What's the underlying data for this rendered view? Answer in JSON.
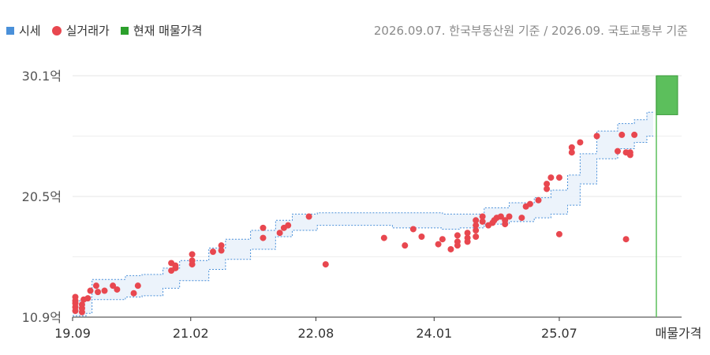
{
  "legend": {
    "items": [
      {
        "label": "시세",
        "color": "#4a90d9",
        "shape": "square"
      },
      {
        "label": "실거래가",
        "color": "#e8474f",
        "shape": "circle"
      },
      {
        "label": "현재 매물가격",
        "color": "#2ca02c",
        "shape": "square"
      }
    ]
  },
  "source_note": "2026.09.07. 한국부동산원 기준 / 2026.09. 국토교통부 기준",
  "chart_data": {
    "type": "scatter",
    "y_unit": "억",
    "y_ticks": [
      "30.1억",
      "20.5억",
      "10.9억"
    ],
    "y_tick_values": [
      30.1,
      20.5,
      10.9
    ],
    "ylim": [
      10.9,
      30.1
    ],
    "x_ticks": [
      "19.09",
      "21.02",
      "22.08",
      "24.01",
      "25.07",
      "매물가격"
    ],
    "x_tick_dates": [
      2019.667,
      2021.083,
      2022.583,
      2024.0,
      2025.5
    ],
    "xlim": [
      2019.667,
      2026.75
    ],
    "grid": true,
    "series": [
      {
        "name": "시세",
        "kind": "band",
        "color": "#4a90d9",
        "points": [
          {
            "x": 2019.667,
            "low": 11.0,
            "high": 12.2
          },
          {
            "x": 2019.83,
            "low": 11.2,
            "high": 12.5
          },
          {
            "x": 2019.9,
            "low": 12.3,
            "high": 13.9
          },
          {
            "x": 2020.3,
            "low": 12.5,
            "high": 14.2
          },
          {
            "x": 2020.5,
            "low": 12.6,
            "high": 14.3
          },
          {
            "x": 2020.75,
            "low": 13.2,
            "high": 14.8
          },
          {
            "x": 2020.95,
            "low": 13.8,
            "high": 15.4
          },
          {
            "x": 2021.3,
            "low": 14.7,
            "high": 16.4
          },
          {
            "x": 2021.5,
            "low": 15.5,
            "high": 17.1
          },
          {
            "x": 2021.8,
            "low": 16.3,
            "high": 17.8
          },
          {
            "x": 2022.1,
            "low": 17.3,
            "high": 18.6
          },
          {
            "x": 2022.3,
            "low": 17.8,
            "high": 19.1
          },
          {
            "x": 2022.6,
            "low": 18.2,
            "high": 19.2
          },
          {
            "x": 2023.0,
            "low": 18.2,
            "high": 19.2
          },
          {
            "x": 2023.5,
            "low": 18.0,
            "high": 19.2
          },
          {
            "x": 2024.1,
            "low": 17.9,
            "high": 19.1
          },
          {
            "x": 2024.3,
            "low": 18.0,
            "high": 19.1
          },
          {
            "x": 2024.6,
            "low": 18.3,
            "high": 19.6
          },
          {
            "x": 2024.9,
            "low": 18.5,
            "high": 20.0
          },
          {
            "x": 2025.2,
            "low": 18.8,
            "high": 20.4
          },
          {
            "x": 2025.4,
            "low": 19.1,
            "high": 21.0
          },
          {
            "x": 2025.6,
            "low": 19.8,
            "high": 22.2
          },
          {
            "x": 2025.75,
            "low": 21.5,
            "high": 23.9
          },
          {
            "x": 2025.95,
            "low": 23.5,
            "high": 25.7
          },
          {
            "x": 2026.2,
            "low": 24.3,
            "high": 26.3
          },
          {
            "x": 2026.4,
            "low": 24.8,
            "high": 26.6
          },
          {
            "x": 2026.55,
            "low": 25.3,
            "high": 27.2
          }
        ]
      },
      {
        "name": "실거래가",
        "kind": "scatter",
        "color": "#e8474f",
        "points": [
          [
            2019.7,
            11.4
          ],
          [
            2019.7,
            11.7
          ],
          [
            2019.7,
            12.0
          ],
          [
            2019.7,
            12.2
          ],
          [
            2019.7,
            12.5
          ],
          [
            2019.78,
            11.3
          ],
          [
            2019.78,
            11.6
          ],
          [
            2019.78,
            11.9
          ],
          [
            2019.8,
            12.3
          ],
          [
            2019.85,
            12.4
          ],
          [
            2019.88,
            13.0
          ],
          [
            2019.95,
            13.4
          ],
          [
            2019.97,
            12.9
          ],
          [
            2020.05,
            13.0
          ],
          [
            2020.15,
            13.4
          ],
          [
            2020.2,
            13.1
          ],
          [
            2020.4,
            12.8
          ],
          [
            2020.45,
            13.4
          ],
          [
            2020.85,
            14.6
          ],
          [
            2020.85,
            15.2
          ],
          [
            2020.9,
            14.8
          ],
          [
            2020.9,
            15.0
          ],
          [
            2021.1,
            15.1
          ],
          [
            2021.1,
            15.4
          ],
          [
            2021.1,
            15.9
          ],
          [
            2021.35,
            16.1
          ],
          [
            2021.45,
            16.2
          ],
          [
            2021.45,
            16.6
          ],
          [
            2021.95,
            17.2
          ],
          [
            2021.95,
            18.0
          ],
          [
            2022.15,
            17.6
          ],
          [
            2022.2,
            18.0
          ],
          [
            2022.25,
            18.2
          ],
          [
            2022.5,
            18.9
          ],
          [
            2022.7,
            15.1
          ],
          [
            2023.4,
            17.2
          ],
          [
            2023.65,
            16.6
          ],
          [
            2023.75,
            17.9
          ],
          [
            2023.85,
            17.3
          ],
          [
            2024.05,
            16.7
          ],
          [
            2024.1,
            17.1
          ],
          [
            2024.2,
            16.3
          ],
          [
            2024.28,
            16.6
          ],
          [
            2024.28,
            16.9
          ],
          [
            2024.28,
            17.4
          ],
          [
            2024.4,
            16.9
          ],
          [
            2024.4,
            17.2
          ],
          [
            2024.4,
            17.6
          ],
          [
            2024.5,
            17.3
          ],
          [
            2024.5,
            17.8
          ],
          [
            2024.5,
            18.2
          ],
          [
            2024.5,
            18.6
          ],
          [
            2024.58,
            18.5
          ],
          [
            2024.58,
            18.9
          ],
          [
            2024.65,
            18.2
          ],
          [
            2024.7,
            18.4
          ],
          [
            2024.72,
            18.6
          ],
          [
            2024.75,
            18.8
          ],
          [
            2024.8,
            18.9
          ],
          [
            2024.85,
            18.3
          ],
          [
            2024.85,
            18.6
          ],
          [
            2024.9,
            18.9
          ],
          [
            2025.05,
            18.8
          ],
          [
            2025.1,
            19.7
          ],
          [
            2025.15,
            19.9
          ],
          [
            2025.25,
            20.2
          ],
          [
            2025.35,
            21.1
          ],
          [
            2025.35,
            21.5
          ],
          [
            2025.4,
            22.0
          ],
          [
            2025.5,
            17.5
          ],
          [
            2025.5,
            22.0
          ],
          [
            2025.65,
            24.0
          ],
          [
            2025.65,
            24.4
          ],
          [
            2025.75,
            24.8
          ],
          [
            2025.95,
            25.3
          ],
          [
            2026.2,
            24.1
          ],
          [
            2026.25,
            25.4
          ],
          [
            2026.3,
            24.0
          ],
          [
            2026.35,
            23.8
          ],
          [
            2026.35,
            24.0
          ],
          [
            2026.4,
            25.4
          ],
          [
            2026.3,
            17.1
          ]
        ]
      },
      {
        "name": "현재 매물가격",
        "kind": "range",
        "color": "#5cbf5c",
        "low": 27.0,
        "high": 30.1
      }
    ]
  }
}
